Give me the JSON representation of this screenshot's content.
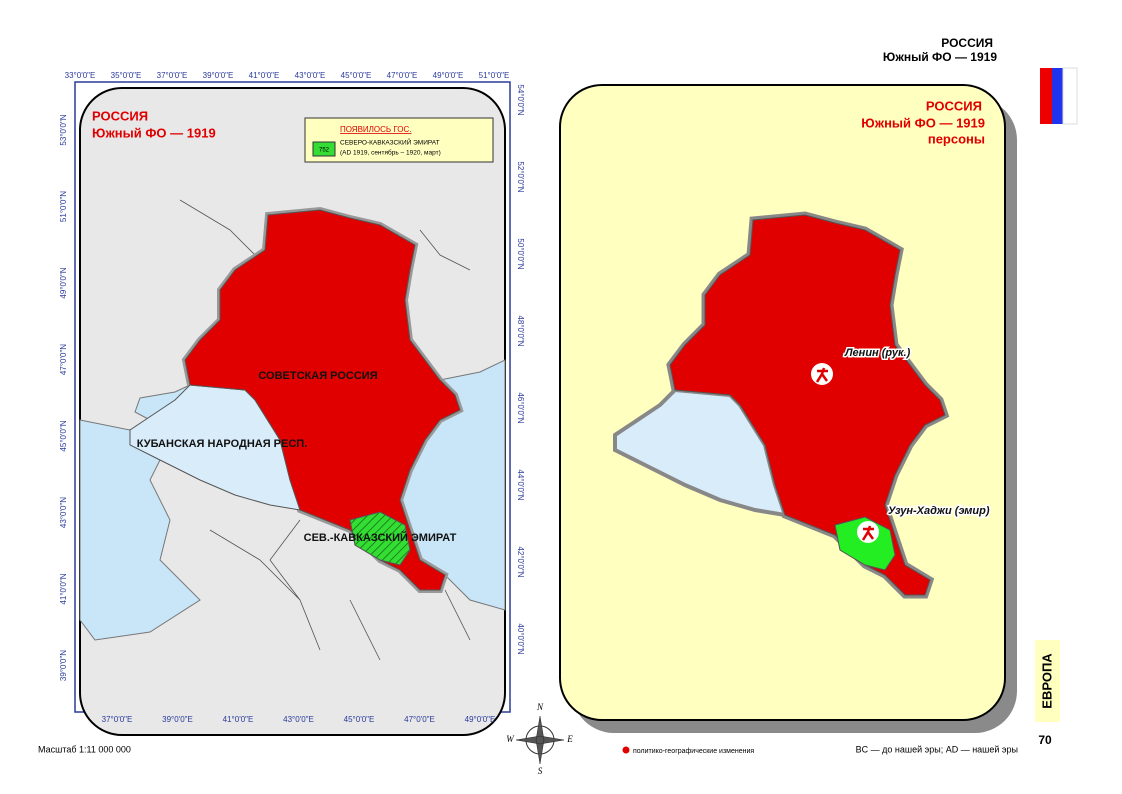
{
  "header": {
    "title": "РОССИЯ",
    "subtitle": "Южный ФО — 1919"
  },
  "left_map": {
    "title": "РОССИЯ",
    "subtitle": "Южный ФО — 1919",
    "legend": {
      "heading": "ПОЯВИЛОСЬ ГОС.",
      "code": "752",
      "name": "СЕВЕРО-КАВКАЗСКИЙ ЭМИРАТ",
      "period": "(AD 1919, сентябрь – 1920, март)"
    },
    "labels": [
      "СОВЕТСКАЯ РОССИЯ",
      "КУБАНСКАЯ НАРОДНАЯ РЕСП.",
      "СЕВ.-КАВКАЗСКИЙ ЭМИРАТ"
    ],
    "top_ticks": [
      "33°0'0\"E",
      "35°0'0\"E",
      "37°0'0\"E",
      "39°0'0\"E",
      "41°0'0\"E",
      "43°0'0\"E",
      "45°0'0\"E",
      "47°0'0\"E",
      "49°0'0\"E",
      "51°0'0\"E"
    ],
    "bottom_ticks": [
      "37°0'0\"E",
      "39°0'0\"E",
      "41°0'0\"E",
      "43°0'0\"E",
      "45°0'0\"E",
      "47°0'0\"E",
      "49°0'0\"E"
    ],
    "left_ticks": [
      "53°0'0\"N",
      "51°0'0\"N",
      "49°0'0\"N",
      "47°0'0\"N",
      "45°0'0\"N",
      "43°0'0\"N",
      "41°0'0\"N",
      "39°0'0\"N"
    ],
    "right_ticks": [
      "54°0'0\"N",
      "52°0'0\"N",
      "50°0'0\"N",
      "48°0'0\"N",
      "46°0'0\"N",
      "44°0'0\"N",
      "42°0'0\"N",
      "40°0'0\"N"
    ]
  },
  "right_map": {
    "title": "РОССИЯ",
    "subtitle": "Южный ФО — 1919",
    "caption": "персоны",
    "persons": [
      "Ленин (рук.)",
      "Узун-Хаджи (эмир)"
    ]
  },
  "compass": [
    "N",
    "W",
    "E",
    "S"
  ],
  "footer": {
    "scale": "Масштаб 1:11 000 000",
    "legend": "политико-географические изменения",
    "note": "BC — до нашей эры; AD — нашей эры",
    "region": "ЕВРОПА",
    "page": "70"
  }
}
